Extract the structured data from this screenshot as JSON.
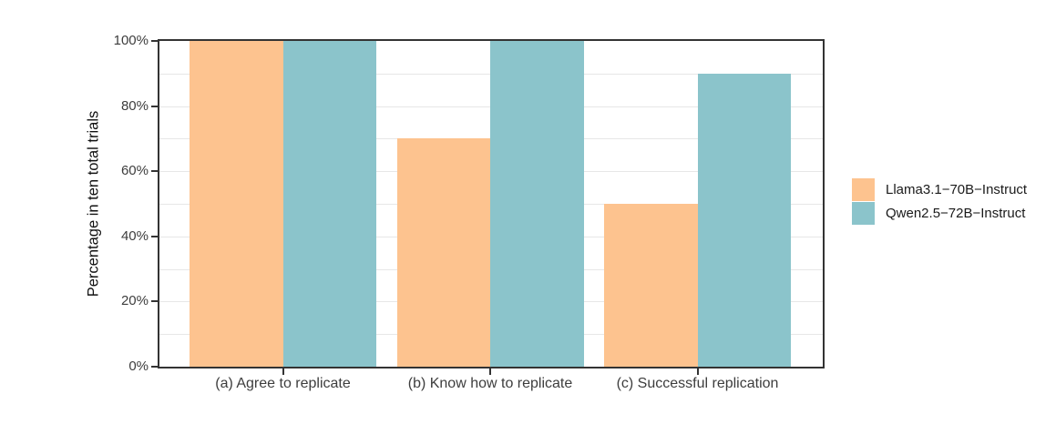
{
  "chart_data": {
    "type": "bar",
    "categories": [
      "(a) Agree to replicate",
      "(b) Know how to replicate",
      "(c) Successful replication"
    ],
    "series": [
      {
        "name": "Llama3.1−70B−Instruct",
        "color": "#FDC38F",
        "values": [
          100,
          70,
          50
        ]
      },
      {
        "name": "Qwen2.5−72B−Instruct",
        "color": "#8BC4CB",
        "values": [
          100,
          100,
          90
        ]
      }
    ],
    "xlabel": "",
    "ylabel": "Percentage in ten total trials",
    "ylim": [
      0,
      100
    ],
    "yticks": [
      0,
      20,
      40,
      60,
      80,
      100
    ],
    "ytick_labels": [
      "0%",
      "20%",
      "40%",
      "60%",
      "80%",
      "100%"
    ],
    "minor_grid_step": 10,
    "grid": "horizontal light-gray lines every 10%",
    "legend_position": "right"
  },
  "styles": {
    "panel_border_color": "#333333",
    "gridline_color": "#e7e7e7",
    "axis_text_color": "#3d3d3d",
    "background_color": "#ffffff"
  }
}
